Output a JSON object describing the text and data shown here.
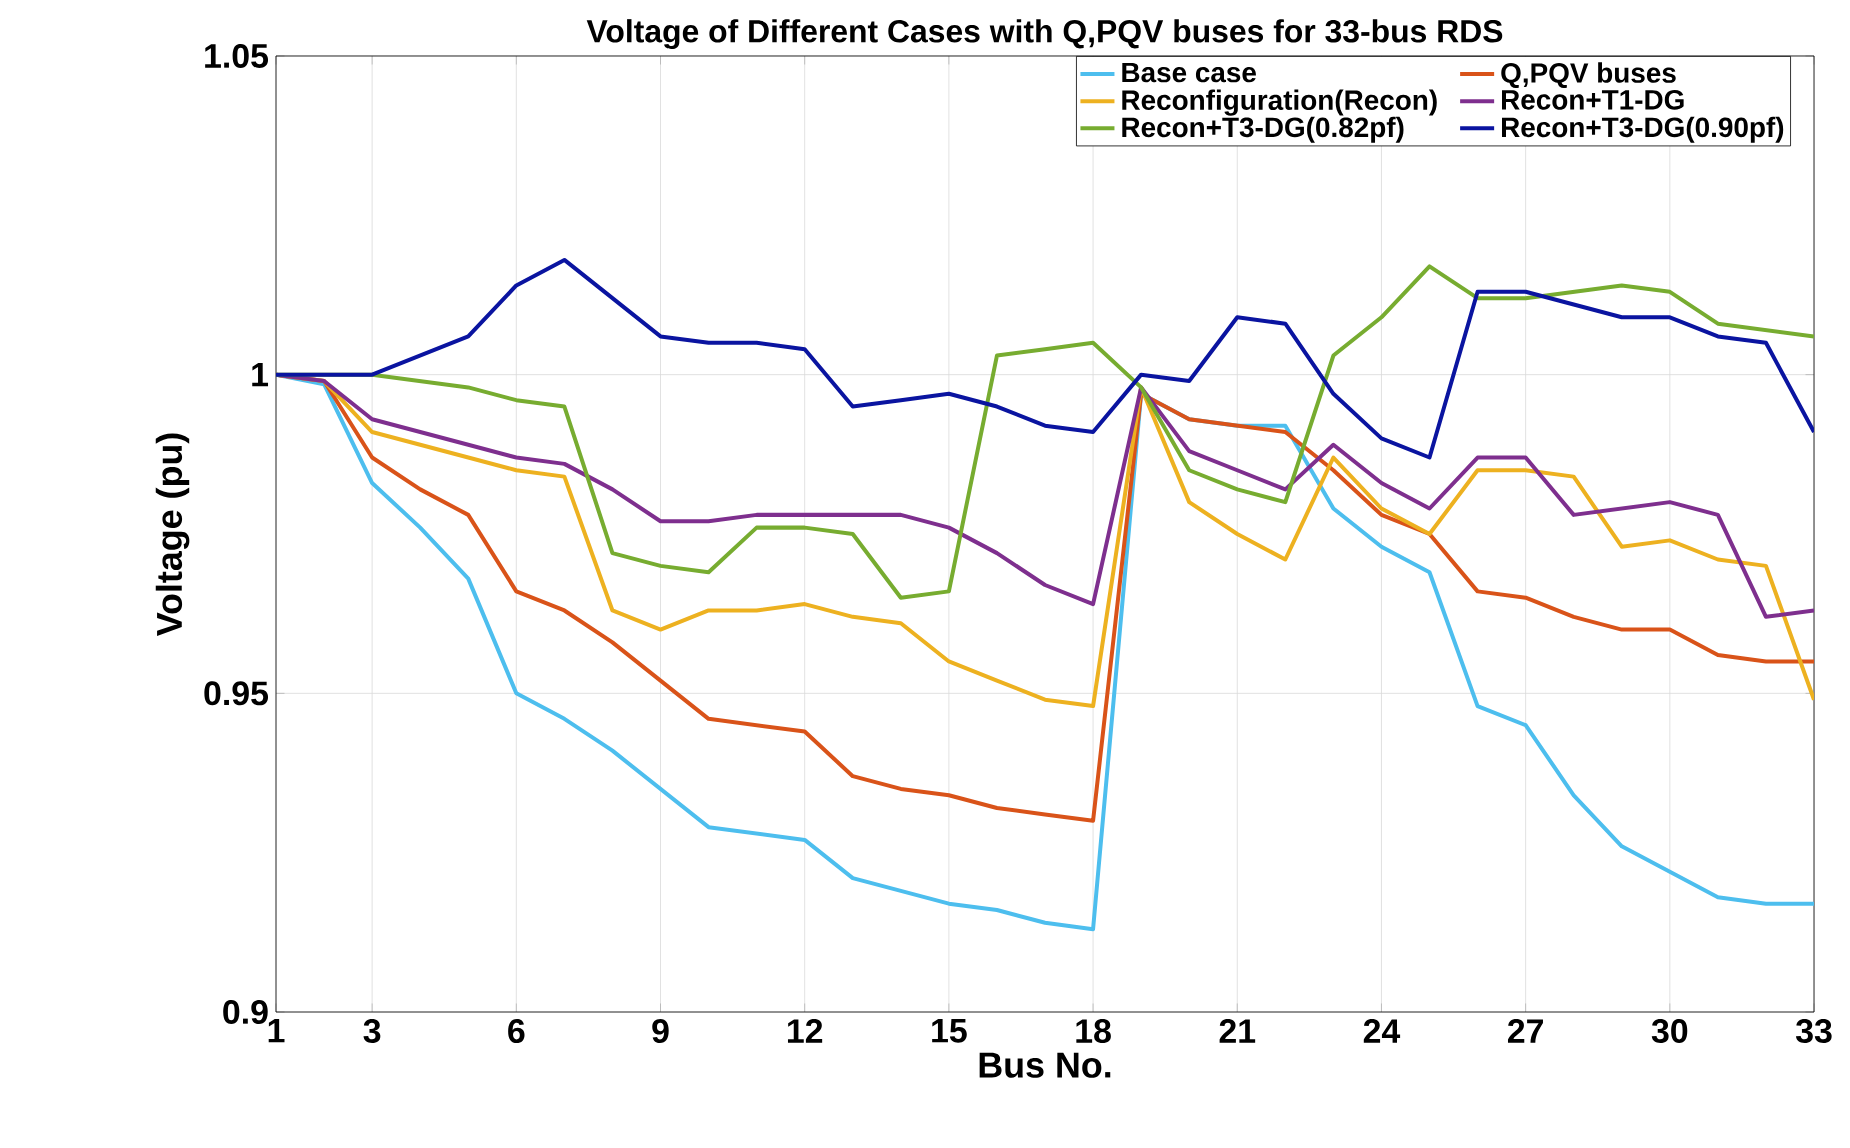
{
  "chart_data": {
    "type": "line",
    "title": "Voltage of Different Cases with Q,PQV buses for 33-bus RDS",
    "xlabel": "Bus No.",
    "ylabel": "Voltage (pu)",
    "x": [
      1,
      2,
      3,
      4,
      5,
      6,
      7,
      8,
      9,
      10,
      11,
      12,
      13,
      14,
      15,
      16,
      17,
      18,
      19,
      20,
      21,
      22,
      23,
      24,
      25,
      26,
      27,
      28,
      29,
      30,
      31,
      32,
      33
    ],
    "xlim": [
      1,
      33
    ],
    "xticks": [
      1,
      3,
      6,
      9,
      12,
      15,
      18,
      21,
      24,
      27,
      30,
      33
    ],
    "ylim": [
      0.9,
      1.05
    ],
    "yticks": [
      0.9,
      0.95,
      1,
      1.05
    ],
    "grid": true,
    "legend": "top right",
    "marker": "none",
    "line_style": "solid",
    "series": [
      {
        "name": "Base case",
        "color": "#4dbeee",
        "values": [
          1.0,
          0.9985,
          0.983,
          0.976,
          0.968,
          0.95,
          0.946,
          0.941,
          0.935,
          0.929,
          0.928,
          0.927,
          0.921,
          0.919,
          0.917,
          0.916,
          0.914,
          0.913,
          0.997,
          0.993,
          0.992,
          0.992,
          0.979,
          0.973,
          0.969,
          0.948,
          0.945,
          0.934,
          0.926,
          0.922,
          0.918,
          0.917,
          0.917
        ]
      },
      {
        "name": "Q,PQV buses",
        "color": "#d95319",
        "values": [
          1.0,
          0.999,
          0.987,
          0.982,
          0.978,
          0.966,
          0.963,
          0.958,
          0.952,
          0.946,
          0.945,
          0.944,
          0.937,
          0.935,
          0.934,
          0.932,
          0.931,
          0.93,
          0.997,
          0.993,
          0.992,
          0.991,
          0.985,
          0.978,
          0.975,
          0.966,
          0.965,
          0.962,
          0.96,
          0.96,
          0.956,
          0.955,
          0.955
        ]
      },
      {
        "name": "Reconfiguration(Recon)",
        "color": "#edb120",
        "values": [
          1.0,
          0.999,
          0.991,
          0.989,
          0.987,
          0.985,
          0.984,
          0.963,
          0.96,
          0.963,
          0.963,
          0.964,
          0.962,
          0.961,
          0.955,
          0.952,
          0.949,
          0.948,
          0.998,
          0.98,
          0.975,
          0.971,
          0.987,
          0.979,
          0.975,
          0.985,
          0.985,
          0.984,
          0.973,
          0.974,
          0.971,
          0.97,
          0.949
        ]
      },
      {
        "name": "Recon+T1-DG",
        "color": "#7e2f8e",
        "values": [
          1.0,
          0.999,
          0.993,
          0.991,
          0.989,
          0.987,
          0.986,
          0.982,
          0.977,
          0.977,
          0.978,
          0.978,
          0.978,
          0.978,
          0.976,
          0.972,
          0.967,
          0.964,
          0.998,
          0.988,
          0.985,
          0.982,
          0.989,
          0.983,
          0.979,
          0.987,
          0.987,
          0.978,
          0.979,
          0.98,
          0.978,
          0.962,
          0.963
        ]
      },
      {
        "name": "Recon+T3-DG(0.82pf)",
        "color": "#77ac30",
        "values": [
          1.0,
          1.0,
          1.0,
          0.999,
          0.998,
          0.996,
          0.995,
          0.972,
          0.97,
          0.969,
          0.976,
          0.976,
          0.975,
          0.965,
          0.966,
          1.003,
          1.004,
          1.005,
          0.998,
          0.985,
          0.982,
          0.98,
          1.003,
          1.009,
          1.017,
          1.012,
          1.012,
          1.013,
          1.014,
          1.013,
          1.008,
          1.007,
          1.006
        ]
      },
      {
        "name": "Recon+T3-DG(0.90pf)",
        "color": "#0a14a0",
        "values": [
          1.0,
          1.0,
          1.0,
          1.003,
          1.006,
          1.014,
          1.018,
          1.012,
          1.006,
          1.005,
          1.005,
          1.004,
          0.995,
          0.996,
          0.997,
          0.995,
          0.992,
          0.991,
          1.0,
          0.999,
          1.009,
          1.008,
          0.997,
          0.99,
          0.987,
          1.013,
          1.013,
          1.011,
          1.009,
          1.009,
          1.006,
          1.005,
          0.991
        ]
      }
    ]
  }
}
